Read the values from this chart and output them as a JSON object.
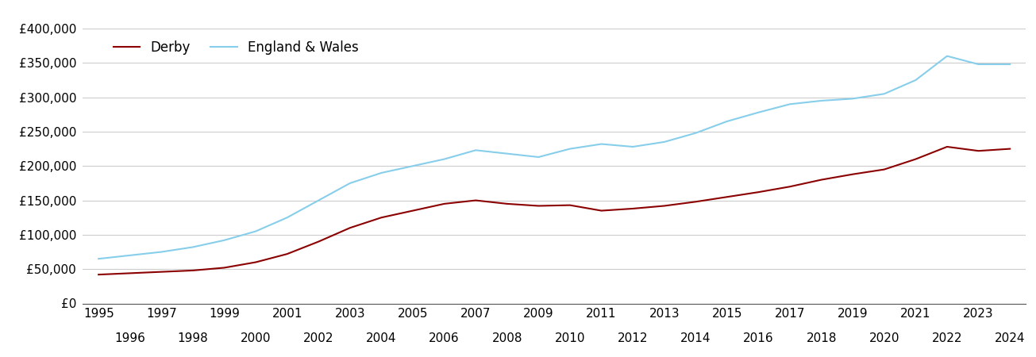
{
  "derby": {
    "years": [
      1995,
      1996,
      1997,
      1998,
      1999,
      2000,
      2001,
      2002,
      2003,
      2004,
      2005,
      2006,
      2007,
      2008,
      2009,
      2010,
      2011,
      2012,
      2013,
      2014,
      2015,
      2016,
      2017,
      2018,
      2019,
      2020,
      2021,
      2022,
      2023,
      2024
    ],
    "values": [
      42000,
      44000,
      46000,
      48000,
      52000,
      60000,
      72000,
      90000,
      110000,
      125000,
      135000,
      145000,
      150000,
      145000,
      142000,
      143000,
      135000,
      138000,
      142000,
      148000,
      155000,
      162000,
      170000,
      180000,
      188000,
      195000,
      210000,
      228000,
      222000,
      225000
    ]
  },
  "england_wales": {
    "years": [
      1995,
      1996,
      1997,
      1998,
      1999,
      2000,
      2001,
      2002,
      2003,
      2004,
      2005,
      2006,
      2007,
      2008,
      2009,
      2010,
      2011,
      2012,
      2013,
      2014,
      2015,
      2016,
      2017,
      2018,
      2019,
      2020,
      2021,
      2022,
      2023,
      2024
    ],
    "values": [
      65000,
      70000,
      75000,
      82000,
      92000,
      105000,
      125000,
      150000,
      175000,
      190000,
      200000,
      210000,
      223000,
      218000,
      213000,
      225000,
      232000,
      228000,
      235000,
      248000,
      265000,
      278000,
      290000,
      295000,
      298000,
      305000,
      325000,
      360000,
      348000,
      348000
    ]
  },
  "derby_color": "#8B0000",
  "ew_color": "#87CEEB",
  "background_color": "#ffffff",
  "grid_color": "#cccccc",
  "ylim": [
    0,
    400000
  ],
  "yticks": [
    0,
    50000,
    100000,
    150000,
    200000,
    250000,
    300000,
    350000,
    400000
  ],
  "xlim": [
    1994.5,
    2024.5
  ],
  "legend_derby": "Derby",
  "legend_ew": "England & Wales",
  "line_width": 1.5,
  "tick_fontsize": 11,
  "legend_fontsize": 12
}
